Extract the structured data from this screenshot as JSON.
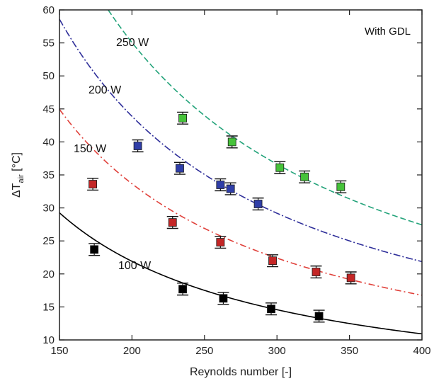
{
  "chart_data": {
    "type": "scatter",
    "title": "",
    "annotation": "With GDL",
    "xlabel": "Reynolds number [-]",
    "ylabel_main": "ΔT",
    "ylabel_sub": "air",
    "ylabel_unit": " [°C]",
    "xlim": [
      150,
      400
    ],
    "ylim": [
      10,
      60
    ],
    "xticks": [
      150,
      200,
      250,
      300,
      350,
      400
    ],
    "yticks": [
      10,
      15,
      20,
      25,
      30,
      35,
      40,
      45,
      50,
      55,
      60
    ],
    "grid": false,
    "series": [
      {
        "name": "100 W",
        "color": "#000000",
        "marker_color": "#000000",
        "dash": "",
        "fit": {
          "a": 4500,
          "b": -1.005
        },
        "points": [
          {
            "x": 174,
            "y": 23.7,
            "err": 0.9
          },
          {
            "x": 235,
            "y": 17.7,
            "err": 0.9
          },
          {
            "x": 263,
            "y": 16.3,
            "err": 0.9
          },
          {
            "x": 296,
            "y": 14.7,
            "err": 0.9
          },
          {
            "x": 329,
            "y": 13.6,
            "err": 0.9
          }
        ]
      },
      {
        "name": "150 W",
        "color": "#e0403a",
        "marker_color": "#c42626",
        "dash": "9,4,2,4",
        "fit": {
          "a": 6913,
          "b": -1.005
        },
        "points": [
          {
            "x": 173,
            "y": 33.6,
            "err": 0.9
          },
          {
            "x": 228,
            "y": 27.8,
            "err": 0.9
          },
          {
            "x": 261,
            "y": 24.8,
            "err": 0.9
          },
          {
            "x": 297,
            "y": 22.0,
            "err": 0.9
          },
          {
            "x": 327,
            "y": 20.3,
            "err": 0.9
          },
          {
            "x": 351,
            "y": 19.4,
            "err": 0.9
          }
        ]
      },
      {
        "name": "200 W",
        "color": "#2f2f9a",
        "marker_color": "#2f3ea8",
        "dash": "10,3,2,3",
        "fit": {
          "a": 9012,
          "b": -1.005
        },
        "points": [
          {
            "x": 204,
            "y": 39.4,
            "err": 0.9
          },
          {
            "x": 233,
            "y": 36.0,
            "err": 0.9
          },
          {
            "x": 261,
            "y": 33.5,
            "err": 0.9
          },
          {
            "x": 268,
            "y": 32.9,
            "err": 0.9
          },
          {
            "x": 287,
            "y": 30.6,
            "err": 0.9
          }
        ]
      },
      {
        "name": "250 W",
        "color": "#23a37a",
        "marker_color": "#46c23a",
        "dash": "8,4",
        "fit": {
          "a": 11308,
          "b": -1.005
        },
        "points": [
          {
            "x": 235,
            "y": 43.6,
            "err": 0.9
          },
          {
            "x": 269,
            "y": 40.0,
            "err": 0.9
          },
          {
            "x": 302,
            "y": 36.1,
            "err": 0.9
          },
          {
            "x": 319,
            "y": 34.7,
            "err": 0.9
          },
          {
            "x": 344,
            "y": 33.2,
            "err": 0.9
          }
        ]
      }
    ]
  }
}
